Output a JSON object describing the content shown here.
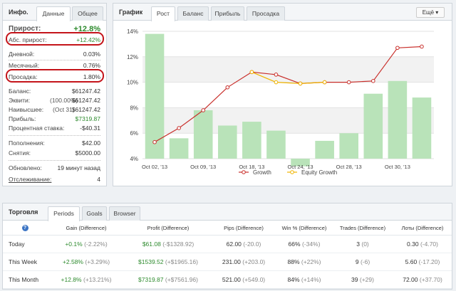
{
  "info": {
    "title": "Инфо.",
    "tabs": [
      "Данные",
      "Общее"
    ],
    "gain_label": "Прирост:",
    "gain_value": "+12.8%",
    "abs_gain_label": "Абс. прирост:",
    "abs_gain_value": "+12.42%",
    "daily_label": "Дневной:",
    "daily_value": "0.03%",
    "monthly_label": "Месячный:",
    "monthly_value": "0.76%",
    "drawdown_label": "Просадка:",
    "drawdown_value": "1.80%",
    "balance_label": "Баланс:",
    "balance_value": "$61247.42",
    "equity_label": "Эквити:",
    "equity_mid": "(100.00%)",
    "equity_value": "$61247.42",
    "highest_label": "Наивысшее:",
    "highest_mid": "(Oct 31)",
    "highest_value": "$61247.42",
    "profit_label": "Прибыль:",
    "profit_value": "$7319.87",
    "interest_label": "Процентная ставка:",
    "interest_value": "-$40.31",
    "deposits_label": "Пополнения:",
    "deposits_value": "$42.00",
    "withdrawals_label": "Снятия:",
    "withdrawals_value": "$5000.00",
    "updated_label": "Обновлено:",
    "updated_value": "19 минут назад",
    "tracking_label": "Отслеживание:",
    "tracking_value": "4"
  },
  "chart_panel": {
    "title": "График",
    "tabs": [
      "Рост",
      "Баланс",
      "Прибыль",
      "Просадка"
    ],
    "more_label": "Ещё"
  },
  "chart_data": {
    "type": "line",
    "x_tick_labels": [
      "Oct 02, '13",
      "Oct 09, '13",
      "Oct 18, '13",
      "Oct 24, '13",
      "Oct 28, '13",
      "Oct 30, '13"
    ],
    "y_tick_labels": [
      "4%",
      "6%",
      "8%",
      "10%",
      "12%",
      "14%"
    ],
    "ylim": [
      4,
      14
    ],
    "bars": [
      13.8,
      5.6,
      7.8,
      6.6,
      6.9,
      6.2,
      3.4,
      5.4,
      6.0,
      9.1,
      10.1,
      8.8
    ],
    "series": [
      {
        "name": "Growth",
        "color": "#c9302c",
        "values": [
          5.3,
          6.4,
          7.8,
          9.6,
          10.8,
          10.6,
          9.9,
          10.0,
          10.0,
          10.1,
          12.7,
          12.8
        ]
      },
      {
        "name": "Equity Growth",
        "color": "#f0b400",
        "values": [
          null,
          null,
          null,
          null,
          10.8,
          10.0,
          9.9,
          10.0,
          null,
          null,
          null,
          null
        ]
      }
    ],
    "legend": [
      "Growth",
      "Equity Growth"
    ],
    "colors": {
      "bar": "#b9e3b9",
      "line": "#c9302c",
      "equity": "#f0b400"
    }
  },
  "trading": {
    "title": "Торговля",
    "tabs": [
      "Periods",
      "Goals",
      "Browser"
    ],
    "headers": [
      "Gain (Difference)",
      "Profit (Difference)",
      "Pips (Difference)",
      "Win % (Difference)",
      "Trades (Difference)",
      "Лоты (Difference)"
    ],
    "rows": [
      {
        "label": "Today",
        "gain": "+0.1%",
        "gain_diff": "(-2.22%)",
        "profit": "$61.08",
        "profit_diff": "(-$1328.92)",
        "pips": "62.00",
        "pips_diff": "(-20.0)",
        "win": "66%",
        "win_diff": "(-34%)",
        "trades": "3",
        "trades_diff": "(0)",
        "lots": "0.30",
        "lots_diff": "(-4.70)"
      },
      {
        "label": "This Week",
        "gain": "+2.58%",
        "gain_diff": "(+3.29%)",
        "profit": "$1539.52",
        "profit_diff": "(+$1965.16)",
        "pips": "231.00",
        "pips_diff": "(+203.0)",
        "win": "88%",
        "win_diff": "(+22%)",
        "trades": "9",
        "trades_diff": "(-6)",
        "lots": "5.60",
        "lots_diff": "(-17.20)"
      },
      {
        "label": "This Month",
        "gain": "+12.8%",
        "gain_diff": "(+13.21%)",
        "profit": "$7319.87",
        "profit_diff": "(+$7561.96)",
        "pips": "521.00",
        "pips_diff": "(+549.0)",
        "win": "84%",
        "win_diff": "(+14%)",
        "trades": "39",
        "trades_diff": "(+29)",
        "lots": "72.00",
        "lots_diff": "(+37.70)"
      }
    ]
  }
}
